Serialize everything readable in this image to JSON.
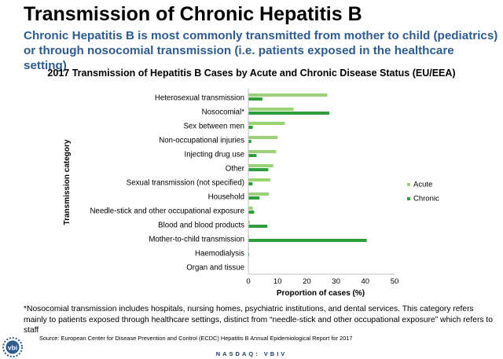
{
  "slide": {
    "title": "Transmission of Chronic Hepatitis B",
    "subtitle": "Chronic Hepatitis B is most commonly transmitted from mother to child (pediatrics) or through nosocomial transmission (i.e. patients exposed in the healthcare setting)",
    "footnote": "*Nosocomial transmission includes hospitals, nursing homes, psychiatric institutions, and dental services.  This category refers mainly to patients exposed through healthcare settings, distinct from “needle-stick and other occupational exposure” which refers to staff",
    "source": "Source: European Center for Disease Prevention and Control (ECDC) Hepatitis B Annual Epidemiological Report for 2017",
    "footer": "NASDAQ:  VBIV",
    "logo_text": "vbi"
  },
  "colors": {
    "acute": "#9bd276",
    "chronic": "#2e9d3b",
    "subtitle": "#2e5c8f"
  },
  "chart_data": {
    "type": "bar",
    "orientation": "horizontal",
    "title": "2017 Transmission of Hepatitis B Cases by Acute and Chronic Disease Status (EU/EEA)",
    "xlabel": "Proportion of cases (%)",
    "ylabel": "Transmission category",
    "xlim": [
      0,
      50
    ],
    "xticks": [
      "0",
      "10",
      "20",
      "30",
      "40",
      "50"
    ],
    "categories": [
      "Heterosexual transmission",
      "Nosocomial*",
      "Sex between men",
      "Non-occupational injuries",
      "Injecting drug use",
      "Other",
      "Sexual transmission (not specified)",
      "Household",
      "Needle-stick and other occupational exposure",
      "Blood and blood products",
      "Mother-to-child transmission",
      "Haemodialysis",
      "Organ and tissue"
    ],
    "series": [
      {
        "name": "Acute",
        "values": [
          27,
          15.5,
          12.5,
          10,
          9.5,
          8.5,
          7.5,
          7,
          1.5,
          0.5,
          0.3,
          0.2,
          0.1
        ]
      },
      {
        "name": "Chronic",
        "values": [
          4.8,
          27.7,
          1.5,
          1,
          2.8,
          6.8,
          1.4,
          3.8,
          2,
          6.5,
          40.5,
          0.3,
          0.1
        ]
      }
    ],
    "legend": "right"
  }
}
